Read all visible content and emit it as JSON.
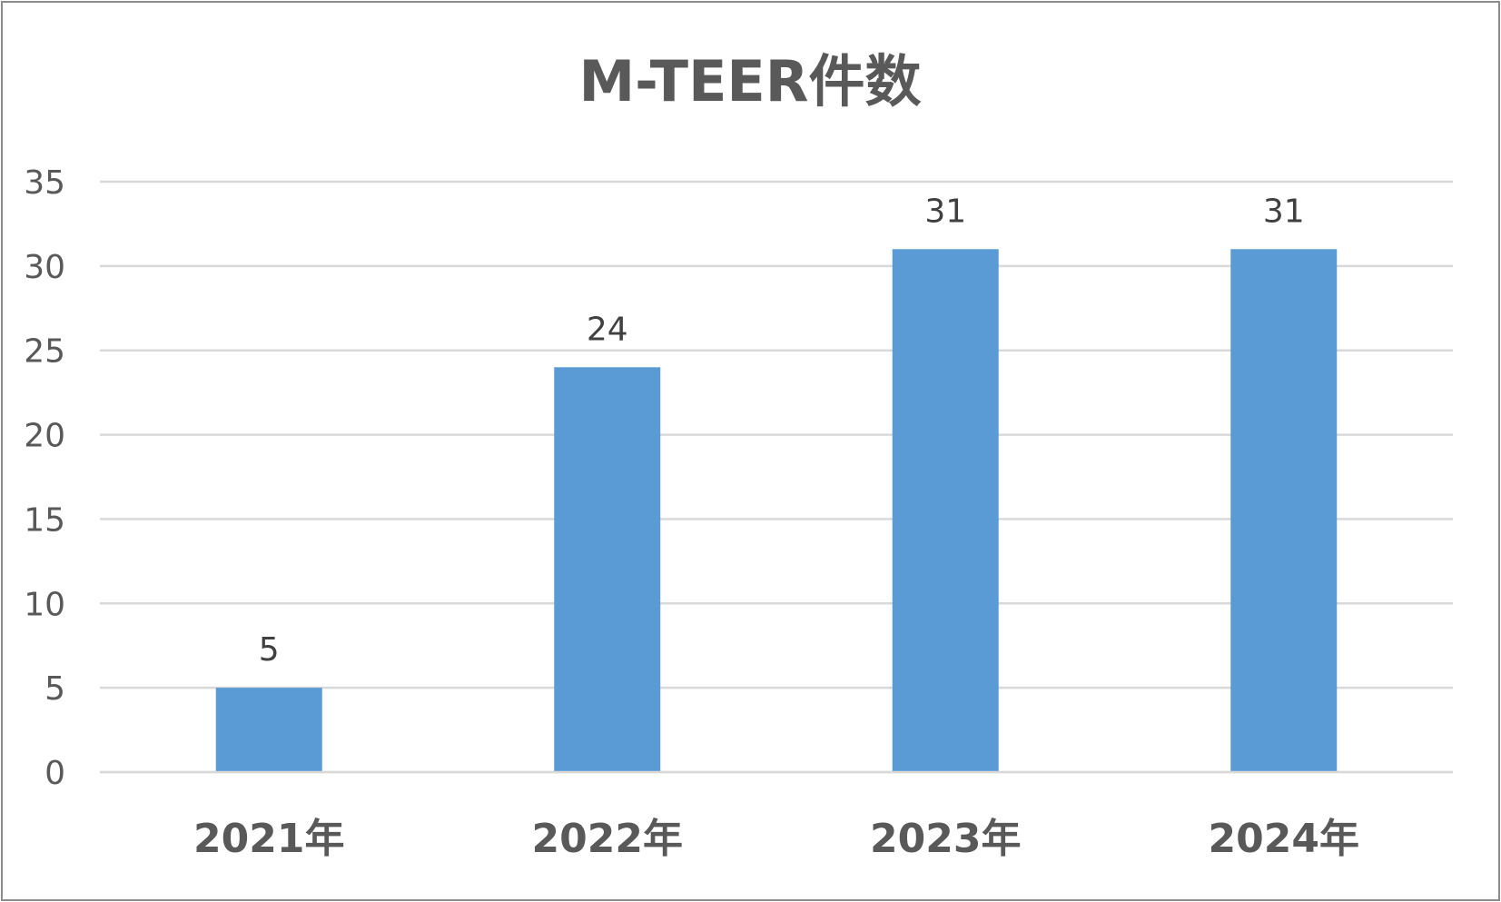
{
  "chart_data": {
    "type": "bar",
    "title": "M-TEER件数",
    "categories": [
      "2021年",
      "2022年",
      "2023年",
      "2024年"
    ],
    "values": [
      5,
      24,
      31,
      31
    ],
    "data_labels": [
      "5",
      "24",
      "31",
      "31"
    ],
    "ylim": [
      0,
      35
    ],
    "yticks": [
      0,
      5,
      10,
      15,
      20,
      25,
      30,
      35
    ],
    "ytick_labels": [
      "0",
      "5",
      "10",
      "15",
      "20",
      "25",
      "30",
      "35"
    ],
    "grid": true,
    "legend": "none",
    "colors": {
      "bar": "#5b9bd5",
      "grid": "#d9d9d9",
      "text": "#595959"
    }
  }
}
